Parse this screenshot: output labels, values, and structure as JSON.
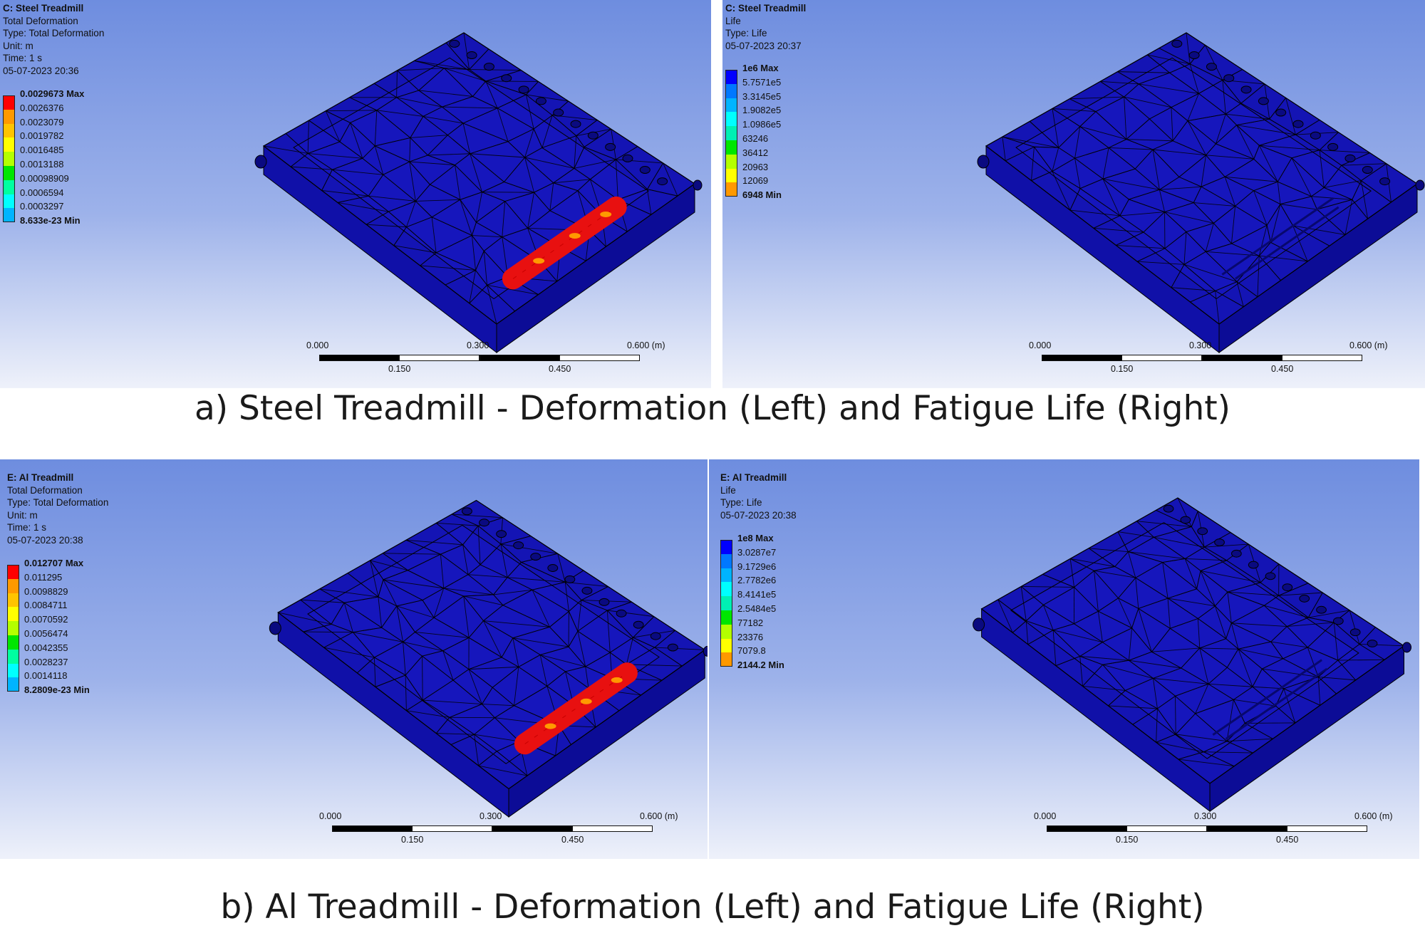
{
  "panels": [
    {
      "info": {
        "title": "C: Steel Treadmill",
        "lines": [
          "Total Deformation",
          "Type: Total Deformation",
          "Unit: m",
          "Time: 1 s",
          "05-07-2023 20:36"
        ]
      },
      "legend": {
        "labels": [
          "0.0029673 Max",
          "0.0026376",
          "0.0023079",
          "0.0019782",
          "0.0016485",
          "0.0013188",
          "0.00098909",
          "0.0006594",
          "0.0003297",
          "8.633e-23 Min"
        ],
        "colors": [
          "#ff0000",
          "#ff9900",
          "#ffc400",
          "#ffff00",
          "#b4ff00",
          "#00e600",
          "#00ffa0",
          "#00ffff",
          "#00b4ff",
          "#0000ff"
        ]
      },
      "scale": {
        "ticks_top": [
          "0.000",
          "0.300",
          "0.600 (m)"
        ],
        "ticks_bottom": [
          "0.150",
          "0.450"
        ]
      },
      "contour": "deformation"
    },
    {
      "info": {
        "title": "C: Steel Treadmill",
        "lines": [
          "Life",
          "Type: Life",
          "05-07-2023 20:37"
        ]
      },
      "legend": {
        "labels": [
          "1e6 Max",
          "5.7571e5",
          "3.3145e5",
          "1.9082e5",
          "1.0986e5",
          "63246",
          "36412",
          "20963",
          "12069",
          "6948 Min"
        ],
        "colors": [
          "#0000ff",
          "#0078ff",
          "#00b4ff",
          "#00ffff",
          "#00f0b4",
          "#00e600",
          "#b4ff00",
          "#ffff00",
          "#ff9900",
          "#ff0000"
        ]
      },
      "scale": {
        "ticks_top": [
          "0.000",
          "0.300",
          "0.600 (m)"
        ],
        "ticks_bottom": [
          "0.150",
          "0.450"
        ]
      },
      "contour": "life"
    },
    {
      "info": {
        "title": "E: Al Treadmill",
        "lines": [
          "Total Deformation",
          "Type: Total Deformation",
          "Unit: m",
          "Time: 1 s",
          "05-07-2023 20:38"
        ]
      },
      "legend": {
        "labels": [
          "0.012707 Max",
          "0.011295",
          "0.0098829",
          "0.0084711",
          "0.0070592",
          "0.0056474",
          "0.0042355",
          "0.0028237",
          "0.0014118",
          "8.2809e-23 Min"
        ],
        "colors": [
          "#ff0000",
          "#ff9900",
          "#ffc400",
          "#ffff00",
          "#b4ff00",
          "#00e600",
          "#00ffa0",
          "#00ffff",
          "#00b4ff",
          "#0000ff"
        ]
      },
      "scale": {
        "ticks_top": [
          "0.000",
          "0.300",
          "0.600 (m)"
        ],
        "ticks_bottom": [
          "0.150",
          "0.450"
        ]
      },
      "contour": "deformation"
    },
    {
      "info": {
        "title": "E: Al Treadmill",
        "lines": [
          "Life",
          "Type: Life",
          "05-07-2023 20:38"
        ]
      },
      "legend": {
        "labels": [
          "1e8 Max",
          "3.0287e7",
          "9.1729e6",
          "2.7782e6",
          "8.4141e5",
          "2.5484e5",
          "77182",
          "23376",
          "7079.8",
          "2144.2 Min"
        ],
        "colors": [
          "#0000ff",
          "#0078ff",
          "#00b4ff",
          "#00ffff",
          "#00f0b4",
          "#00e600",
          "#b4ff00",
          "#ffff00",
          "#ff9900",
          "#ff0000"
        ]
      },
      "scale": {
        "ticks_top": [
          "0.000",
          "0.300",
          "0.600 (m)"
        ],
        "ticks_bottom": [
          "0.150",
          "0.450"
        ]
      },
      "contour": "life"
    }
  ],
  "captions": {
    "a": "a) Steel Treadmill - Deformation (Left) and Fatigue Life (Right)",
    "b": "b) Al Treadmill - Deformation (Left) and Fatigue Life (Right)"
  },
  "colors": {
    "mesh_fill": "#1414b4",
    "mesh_edge": "#000000",
    "hotspot": "#e81010",
    "background_top": "#6e8ddf",
    "background_bottom": "#eef1fa"
  }
}
